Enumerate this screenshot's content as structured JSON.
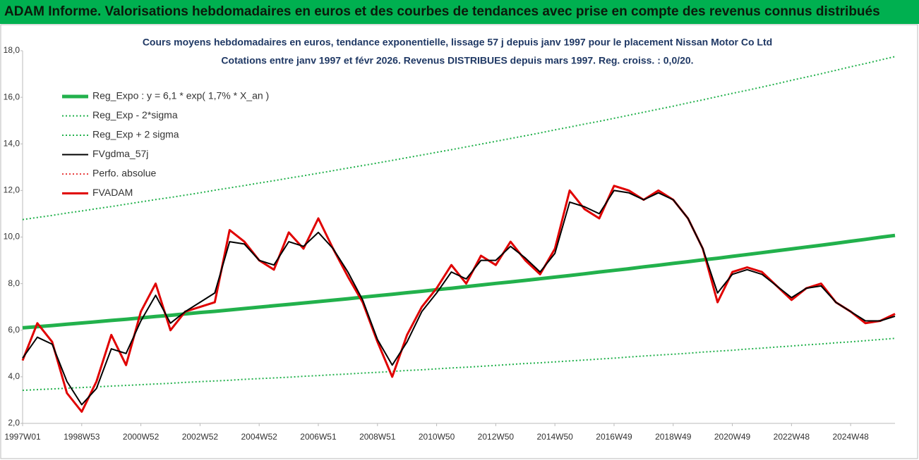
{
  "chart_data": {
    "type": "line",
    "title": "ADAM Informe. Valorisations hebdomadaires en euros et des courbes de tendances avec prise en compte des revenus connus distribués",
    "subtitle": [
      "Cours moyens hebdomadaires en euros, tendance exponentielle, lissage 57 j depuis janv 1997 pour le placement Nissan Motor Co Ltd",
      "Cotations entre janv 1997 et févr 2026. Revenus DISTRIBUES depuis mars 1997. Reg. croiss. : 0,0/20."
    ],
    "categories": [
      "1997W01",
      null,
      null,
      null,
      "1998W53",
      null,
      null,
      null,
      "2000W52",
      null,
      null,
      null,
      "2002W52",
      null,
      null,
      null,
      "2004W52",
      null,
      null,
      null,
      "2006W51",
      null,
      null,
      null,
      "2008W51",
      null,
      null,
      null,
      "2010W50",
      null,
      null,
      null,
      "2012W50",
      null,
      null,
      null,
      "2014W50",
      null,
      null,
      null,
      "2016W49",
      null,
      null,
      null,
      "2018W49",
      null,
      null,
      null,
      "2020W49",
      null,
      null,
      null,
      "2022W48",
      null,
      null,
      null,
      "2024W48",
      null,
      null,
      null
    ],
    "ylim": [
      2,
      18
    ],
    "yticks": [
      {
        "value": 2,
        "label": "2,0"
      },
      {
        "value": 4,
        "label": "4,0"
      },
      {
        "value": 6,
        "label": "6,0"
      },
      {
        "value": 8,
        "label": "8,0"
      },
      {
        "value": 10,
        "label": "10,0"
      },
      {
        "value": 12,
        "label": "12,0"
      },
      {
        "value": 14,
        "label": "14,0"
      },
      {
        "value": 16,
        "label": "16,0"
      },
      {
        "value": 18,
        "label": "18,0"
      }
    ],
    "grid": false,
    "legend": "upper-left",
    "series": [
      {
        "name": "Reg_Expo : y = 6,1 * exp( 1,7% *  X_an )",
        "color": "#22b14c",
        "style": "solid",
        "width": 5,
        "values": [
          6.1,
          6.15,
          6.2,
          6.26,
          6.31,
          6.36,
          6.42,
          6.47,
          6.53,
          6.59,
          6.64,
          6.7,
          6.76,
          6.81,
          6.87,
          6.93,
          6.99,
          7.05,
          7.11,
          7.17,
          7.23,
          7.29,
          7.35,
          7.42,
          7.48,
          7.54,
          7.61,
          7.67,
          7.74,
          7.8,
          7.87,
          7.94,
          8.01,
          8.07,
          8.14,
          8.21,
          8.28,
          8.35,
          8.42,
          8.5,
          8.57,
          8.64,
          8.72,
          8.79,
          8.87,
          8.94,
          9.02,
          9.09,
          9.17,
          9.25,
          9.33,
          9.41,
          9.49,
          9.57,
          9.65,
          9.73,
          9.82,
          9.9,
          9.99,
          10.07
        ]
      },
      {
        "name": "Reg_Exp - 2*sigma",
        "color": "#22b14c",
        "style": "dotted",
        "width": 2,
        "values": [
          3.42,
          3.45,
          3.48,
          3.51,
          3.54,
          3.57,
          3.6,
          3.63,
          3.66,
          3.69,
          3.72,
          3.76,
          3.79,
          3.82,
          3.85,
          3.89,
          3.92,
          3.95,
          3.98,
          4.02,
          4.05,
          4.09,
          4.12,
          4.16,
          4.19,
          4.23,
          4.27,
          4.3,
          4.34,
          4.38,
          4.41,
          4.45,
          4.49,
          4.53,
          4.57,
          4.6,
          4.64,
          4.68,
          4.72,
          4.76,
          4.8,
          4.85,
          4.89,
          4.93,
          4.97,
          5.01,
          5.06,
          5.1,
          5.14,
          5.19,
          5.23,
          5.28,
          5.32,
          5.37,
          5.41,
          5.46,
          5.5,
          5.55,
          5.6,
          5.65
        ]
      },
      {
        "name": "Reg_Exp + 2 sigma",
        "color": "#22b14c",
        "style": "dotted",
        "width": 2,
        "values": [
          10.75,
          10.84,
          10.93,
          11.03,
          11.12,
          11.22,
          11.31,
          11.41,
          11.51,
          11.61,
          11.7,
          11.8,
          11.9,
          12.01,
          12.11,
          12.21,
          12.32,
          12.42,
          12.53,
          12.63,
          12.74,
          12.85,
          12.96,
          13.07,
          13.18,
          13.29,
          13.41,
          13.52,
          13.64,
          13.75,
          13.87,
          13.99,
          14.11,
          14.23,
          14.35,
          14.47,
          14.6,
          14.72,
          14.85,
          14.97,
          15.1,
          15.23,
          15.36,
          15.49,
          15.62,
          15.76,
          15.89,
          16.03,
          16.17,
          16.3,
          16.44,
          16.58,
          16.73,
          16.87,
          17.01,
          17.16,
          17.31,
          17.45,
          17.6,
          17.75
        ]
      },
      {
        "name": "FVgdma_57j",
        "color": "#000000",
        "style": "solid",
        "width": 2,
        "values": [
          4.8,
          5.7,
          5.4,
          3.8,
          2.8,
          3.5,
          5.2,
          5.0,
          6.4,
          7.5,
          6.3,
          6.8,
          7.2,
          7.6,
          9.8,
          9.7,
          9.0,
          8.8,
          9.8,
          9.6,
          10.2,
          9.5,
          8.5,
          7.3,
          5.6,
          4.5,
          5.5,
          6.8,
          7.6,
          8.5,
          8.2,
          9.0,
          9.0,
          9.6,
          9.1,
          8.5,
          9.3,
          11.5,
          11.3,
          11.0,
          12.0,
          11.9,
          11.6,
          11.9,
          11.6,
          10.8,
          9.5,
          7.6,
          8.4,
          8.6,
          8.4,
          7.9,
          7.4,
          7.8,
          7.9,
          7.2,
          6.8,
          6.4,
          6.4,
          6.6
        ]
      },
      {
        "name": "Perfo. absolue",
        "color": "#e00000",
        "style": "dotted",
        "width": 1.5,
        "values": [
          4.7,
          6.3,
          5.5,
          3.3,
          2.5,
          3.8,
          5.8,
          4.5,
          6.8,
          8.0,
          6.0,
          6.8,
          7.0,
          7.2,
          10.3,
          9.8,
          9.0,
          8.6,
          10.2,
          9.5,
          10.8,
          9.5,
          8.3,
          7.2,
          5.5,
          4.0,
          5.8,
          7.0,
          7.8,
          8.8,
          8.0,
          9.2,
          8.8,
          9.8,
          9.0,
          8.4,
          9.5,
          12.0,
          11.2,
          10.8,
          12.2,
          12.0,
          11.6,
          12.0,
          11.6,
          10.8,
          9.5,
          7.2,
          8.5,
          8.7,
          8.5,
          7.9,
          7.3,
          7.8,
          8.0,
          7.2,
          6.8,
          6.3,
          6.4,
          6.7
        ]
      },
      {
        "name": "FVADAM",
        "color": "#e00000",
        "style": "solid",
        "width": 3,
        "values": [
          4.7,
          6.3,
          5.5,
          3.3,
          2.5,
          3.8,
          5.8,
          4.5,
          6.8,
          8.0,
          6.0,
          6.8,
          7.0,
          7.2,
          10.3,
          9.8,
          9.0,
          8.6,
          10.2,
          9.5,
          10.8,
          9.5,
          8.3,
          7.2,
          5.5,
          4.0,
          5.8,
          7.0,
          7.8,
          8.8,
          8.0,
          9.2,
          8.8,
          9.8,
          9.0,
          8.4,
          9.5,
          12.0,
          11.2,
          10.8,
          12.2,
          12.0,
          11.6,
          12.0,
          11.6,
          10.8,
          9.5,
          7.2,
          8.5,
          8.7,
          8.5,
          7.9,
          7.3,
          7.8,
          8.0,
          7.2,
          6.8,
          6.3,
          6.4,
          6.7
        ]
      }
    ]
  }
}
